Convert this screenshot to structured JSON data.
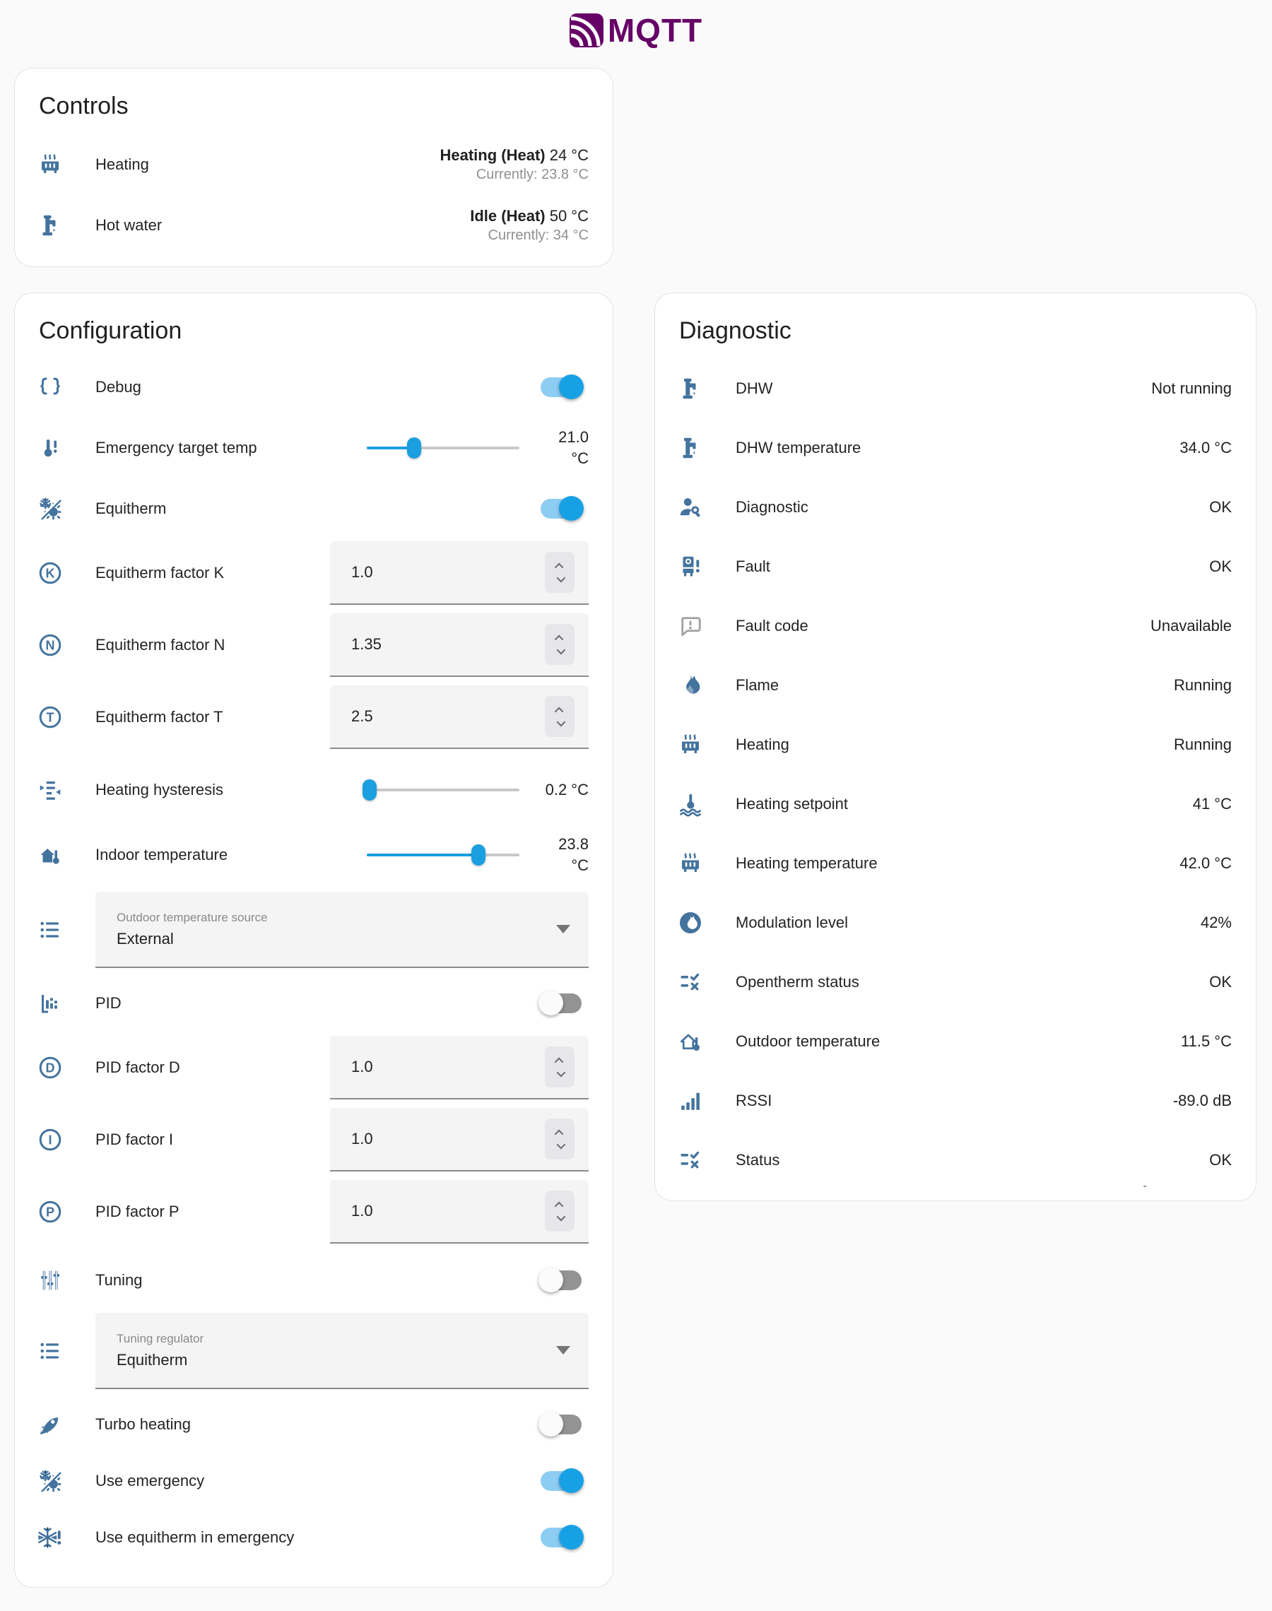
{
  "colors": {
    "accent": "#1a9fe0",
    "accent_track": "#8dcdf3",
    "icon_blue": "#44739e",
    "logo_purple": "#660066",
    "unavailable_grey": "#9e9e9e"
  },
  "logo": {
    "label": "MQTT"
  },
  "controls": {
    "title": "Controls",
    "rows": [
      {
        "label": "Heating",
        "state_bold": "Heating (Heat)",
        "state_value": " 24 °C",
        "secondary": "Currently: 23.8 °C"
      },
      {
        "label": "Hot water",
        "state_bold": "Idle (Heat)",
        "state_value": " 50 °C",
        "secondary": "Currently: 34 °C"
      }
    ]
  },
  "configuration": {
    "title": "Configuration",
    "rows": [
      {
        "type": "toggle",
        "label": "Debug",
        "on": true
      },
      {
        "type": "slider",
        "label": "Emergency target temp",
        "value_line1": "21.0",
        "value_line2": "°C",
        "percent": 31
      },
      {
        "type": "toggle",
        "label": "Equitherm",
        "on": true
      },
      {
        "type": "number",
        "label": "Equitherm factor K",
        "value": "1.0"
      },
      {
        "type": "number",
        "label": "Equitherm factor N",
        "value": "1.35"
      },
      {
        "type": "number",
        "label": "Equitherm factor T",
        "value": "2.5"
      },
      {
        "type": "slider",
        "label": "Heating hysteresis",
        "value_line1": "0.2 °C",
        "value_line2": "",
        "percent": 2
      },
      {
        "type": "slider",
        "label": "Indoor temperature",
        "value_line1": "23.8",
        "value_line2": "°C",
        "percent": 73
      },
      {
        "type": "select",
        "label": "Outdoor temperature source",
        "value": "External"
      },
      {
        "type": "toggle",
        "label": "PID",
        "on": false
      },
      {
        "type": "number",
        "label": "PID factor D",
        "value": "1.0"
      },
      {
        "type": "number",
        "label": "PID factor I",
        "value": "1.0"
      },
      {
        "type": "number",
        "label": "PID factor P",
        "value": "1.0"
      },
      {
        "type": "toggle",
        "label": "Tuning",
        "on": false
      },
      {
        "type": "select",
        "label": "Tuning regulator",
        "value": "Equitherm"
      },
      {
        "type": "toggle",
        "label": "Turbo heating",
        "on": false
      },
      {
        "type": "toggle",
        "label": "Use emergency",
        "on": true
      },
      {
        "type": "toggle",
        "label": "Use equitherm in emergency",
        "on": true
      }
    ]
  },
  "diagnostic": {
    "title": "Diagnostic",
    "note": "-",
    "rows": [
      {
        "label": "DHW",
        "value": "Not running"
      },
      {
        "label": "DHW temperature",
        "value": "34.0 °C"
      },
      {
        "label": "Diagnostic",
        "value": "OK"
      },
      {
        "label": "Fault",
        "value": "OK"
      },
      {
        "label": "Fault code",
        "value": "Unavailable"
      },
      {
        "label": "Flame",
        "value": "Running"
      },
      {
        "label": "Heating",
        "value": "Running"
      },
      {
        "label": "Heating setpoint",
        "value": "41 °C"
      },
      {
        "label": "Heating temperature",
        "value": "42.0 °C"
      },
      {
        "label": "Modulation level",
        "value": "42%"
      },
      {
        "label": "Opentherm status",
        "value": "OK"
      },
      {
        "label": "Outdoor temperature",
        "value": "11.5 °C"
      },
      {
        "label": "RSSI",
        "value": "-89.0 dB"
      },
      {
        "label": "Status",
        "value": "OK"
      }
    ]
  }
}
